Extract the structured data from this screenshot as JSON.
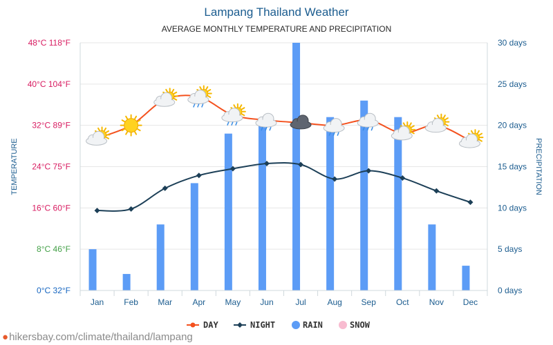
{
  "chart_data": {
    "type": "bar+line",
    "title": "Lampang Thailand Weather",
    "subtitle": "AVERAGE MONTHLY TEMPERATURE AND PRECIPITATION",
    "categories": [
      "Jan",
      "Feb",
      "Mar",
      "Apr",
      "May",
      "Jun",
      "Jul",
      "Aug",
      "Sep",
      "Oct",
      "Nov",
      "Dec"
    ],
    "ylabel_left": "TEMPERATURE",
    "ylabel_right": "PRECIPITATION",
    "left_ticks": [
      {
        "value": 0,
        "label": "0°C 32°F",
        "color": "#1565c0"
      },
      {
        "value": 8,
        "label": "8°C 46°F",
        "color": "#43a047"
      },
      {
        "value": 16,
        "label": "16°C 60°F",
        "color": "#d81b60"
      },
      {
        "value": 24,
        "label": "24°C 75°F",
        "color": "#d81b60"
      },
      {
        "value": 32,
        "label": "32°C 89°F",
        "color": "#d81b60"
      },
      {
        "value": 40,
        "label": "40°C 104°F",
        "color": "#d81b60"
      },
      {
        "value": 48,
        "label": "48°C 118°F",
        "color": "#d81b60"
      }
    ],
    "right_ticks": [
      {
        "value": 0,
        "label": "0 days"
      },
      {
        "value": 5,
        "label": "5 days"
      },
      {
        "value": 10,
        "label": "10 days"
      },
      {
        "value": 15,
        "label": "15 days"
      },
      {
        "value": 20,
        "label": "20 days"
      },
      {
        "value": 25,
        "label": "25 days"
      },
      {
        "value": 30,
        "label": "30 days"
      }
    ],
    "ylim_temperature": [
      0,
      48
    ],
    "ylim_precipitation": [
      0,
      30
    ],
    "series": [
      {
        "name": "DAY",
        "kind": "line",
        "color": "#f4511e",
        "values": [
          29.5,
          32,
          37,
          37.5,
          34,
          33,
          32.5,
          32,
          33,
          30.5,
          32,
          29
        ]
      },
      {
        "name": "NIGHT",
        "kind": "line",
        "color": "#1c3f57",
        "values": [
          15.5,
          15.8,
          19.8,
          22.3,
          23.6,
          24.6,
          24.4,
          21.6,
          23.2,
          21.8,
          19.3,
          17.1
        ]
      },
      {
        "name": "RAIN",
        "kind": "bar",
        "color": "#5c9cf6",
        "values": [
          5,
          2,
          8,
          13,
          19,
          20,
          30,
          21,
          23,
          21,
          8,
          3
        ]
      },
      {
        "name": "SNOW",
        "kind": "bar",
        "color": "#f8bbd0",
        "values": [
          0,
          0,
          0,
          0,
          0,
          0,
          0,
          0,
          0,
          0,
          0,
          0
        ]
      }
    ],
    "weather_icons": [
      "sun-cloud",
      "sun",
      "sun-cloud",
      "sun-cloud-rain",
      "sun-cloud-rain",
      "cloud-rain",
      "storm-cloud",
      "cloud-rain",
      "cloud-rain",
      "sun-cloud",
      "sun-cloud",
      "sun-cloud"
    ],
    "legend_position": "bottom",
    "grid": true
  },
  "legend": [
    {
      "label": "DAY",
      "color": "#f4511e",
      "marker": "line-dot"
    },
    {
      "label": "NIGHT",
      "color": "#1c3f57",
      "marker": "line-diamond"
    },
    {
      "label": "RAIN",
      "color": "#5c9cf6",
      "marker": "circle"
    },
    {
      "label": "SNOW",
      "color": "#f8bbd0",
      "marker": "circle"
    }
  ],
  "footer": {
    "watermark": "hikersbay.com/climate/thailand/lampang",
    "icon": "map-pin-icon"
  }
}
